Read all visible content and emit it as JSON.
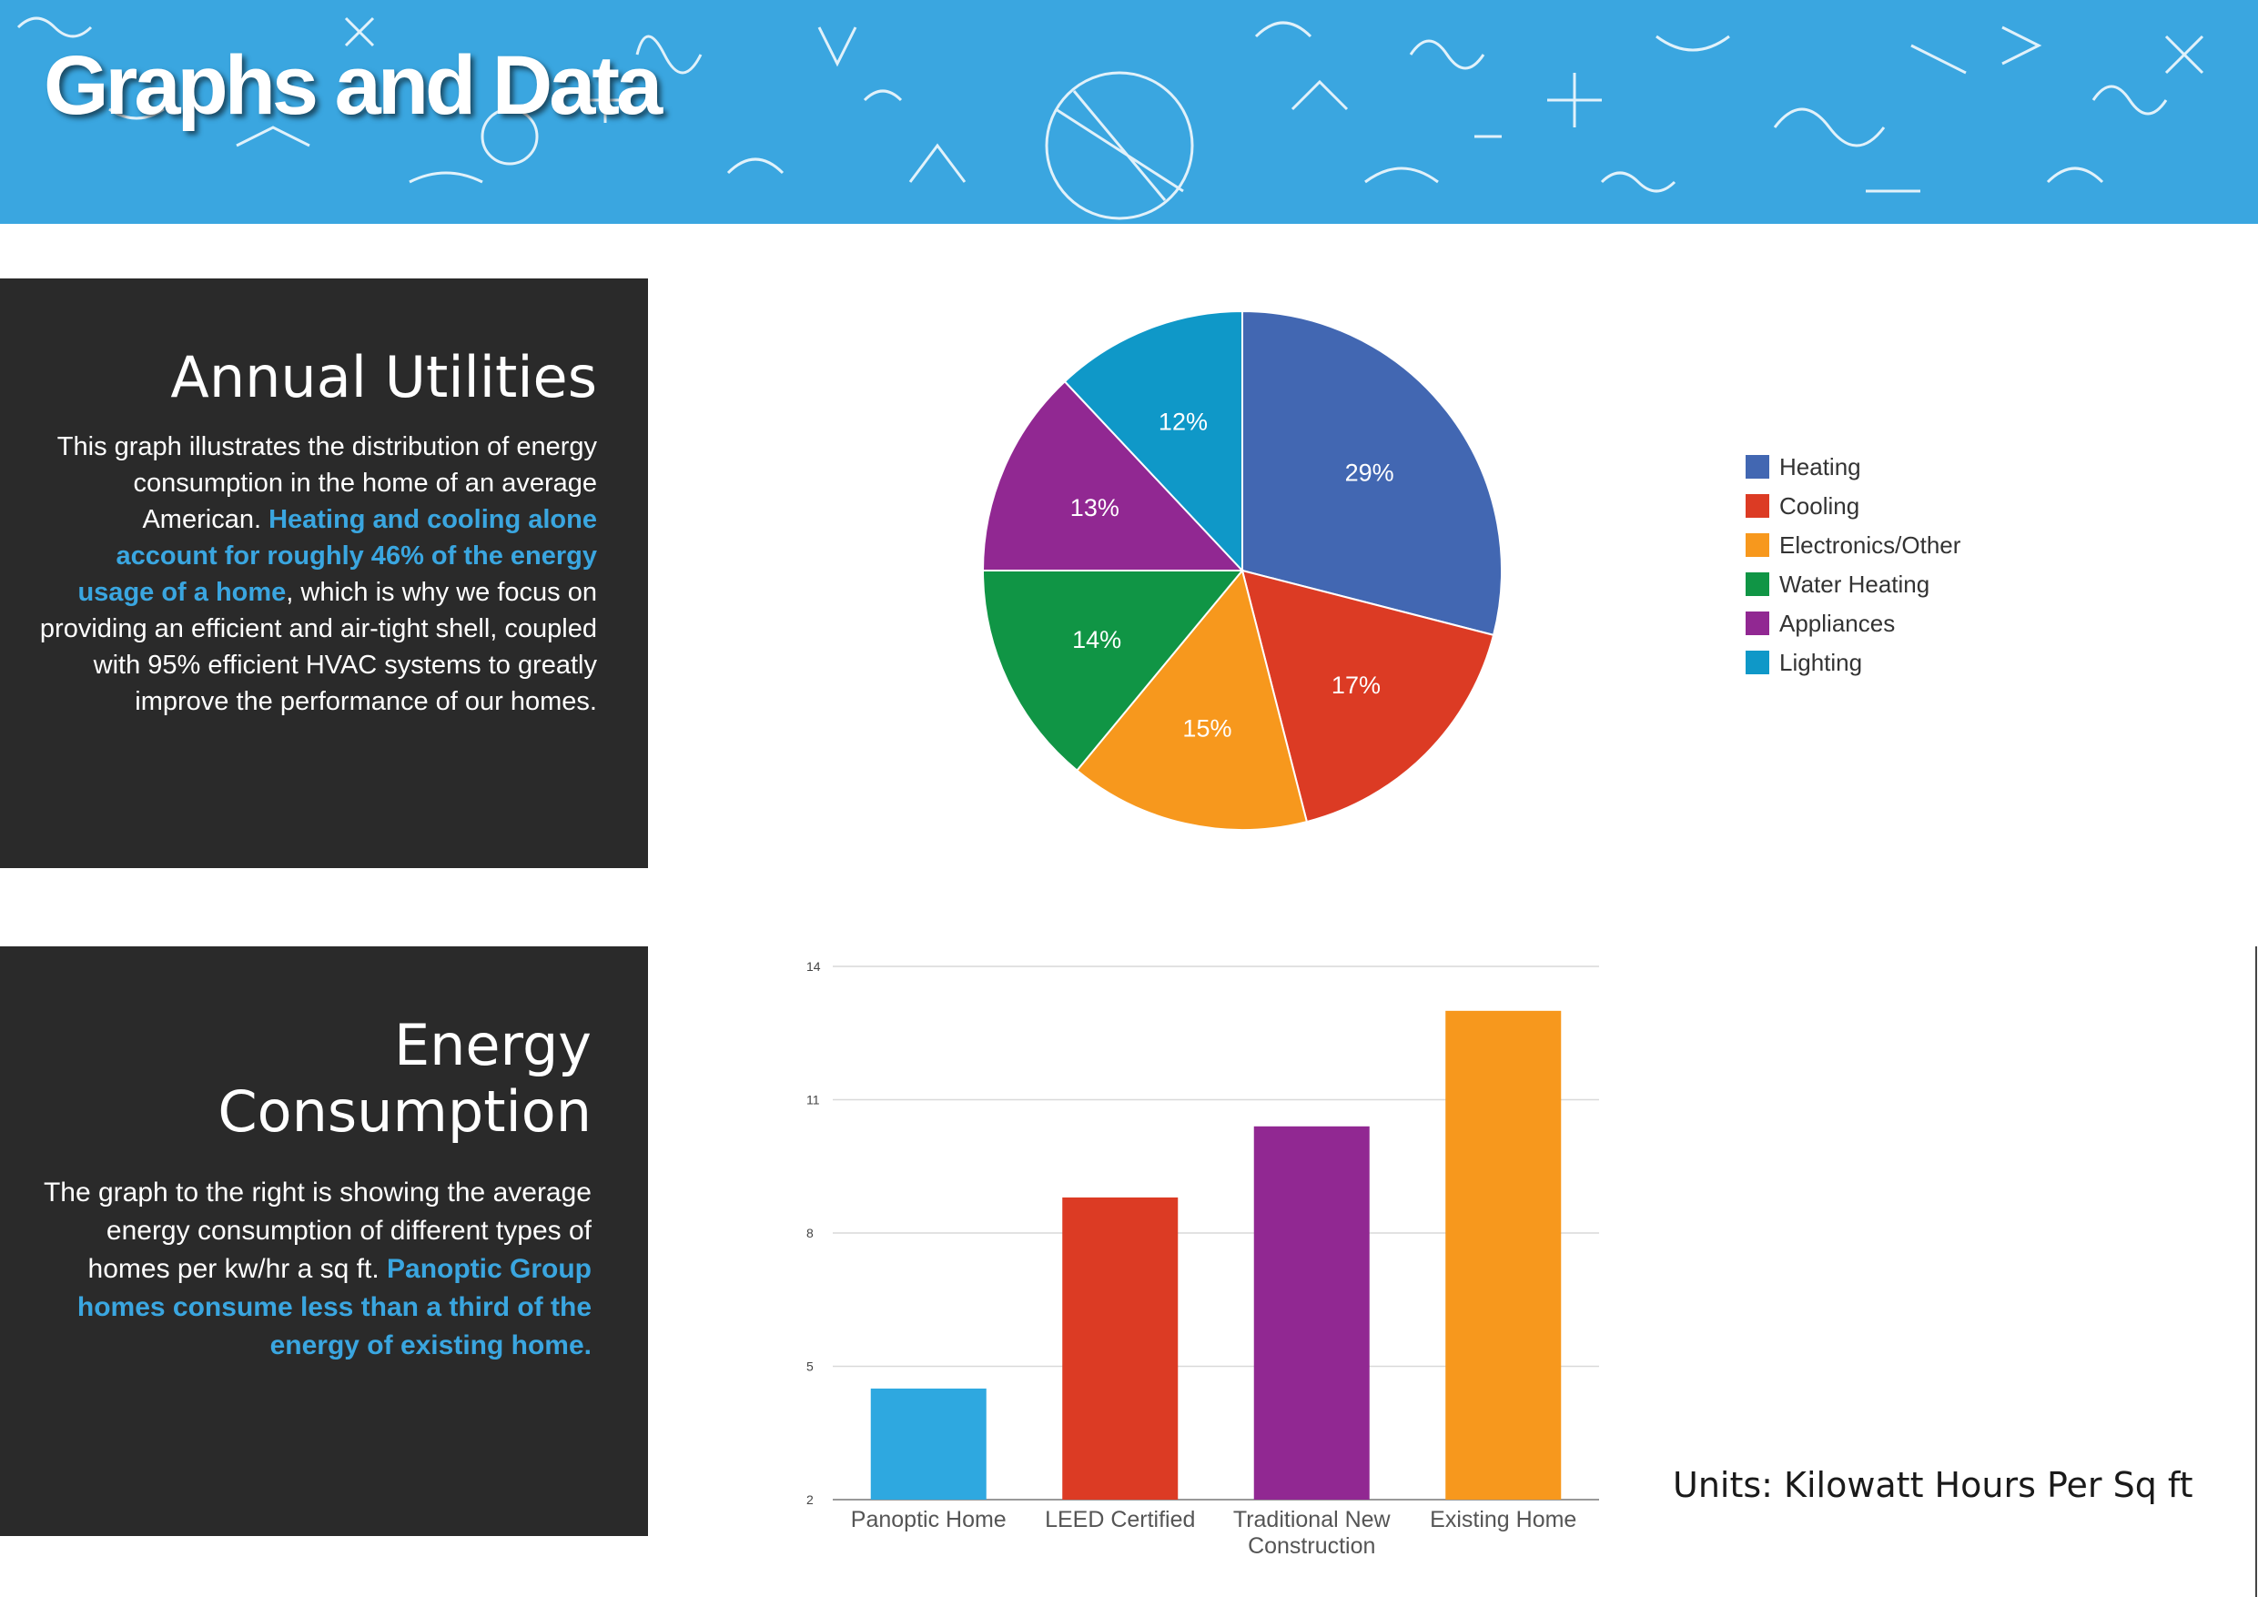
{
  "header": {
    "title": "Graphs and Data"
  },
  "annual_utilities": {
    "heading": "Annual Utilities",
    "text_1": "This graph illustrates the distribution of energy consumption in the home of an average American. ",
    "highlight": "Heating and cooling alone account for roughly 46% of the energy usage of a home",
    "text_2": ", which is why we focus on providing an efficient and air-tight shell, coupled with 95% efficient HVAC systems to greatly improve the performance of our homes."
  },
  "energy_consumption": {
    "heading": "Energy Consumption",
    "text_1": "The graph to the right is showing the average energy consumption of different types of homes per kw/hr a sq ft. ",
    "highlight": "Panoptic Group homes consume less than a third of the energy of existing home."
  },
  "units_label": "Units: Kilowatt Hours Per Sq ft",
  "colors": {
    "accent": "#3aa6e0",
    "panel": "#2a2a2a",
    "heating": "#4267b2",
    "cooling": "#dc3b24",
    "electronics": "#f7981d",
    "water_heating": "#109545",
    "appliances": "#912892",
    "lighting": "#0f98c8"
  },
  "chart_data": [
    {
      "type": "pie",
      "title": "Annual Utilities",
      "categories": [
        "Heating",
        "Cooling",
        "Electronics/Other",
        "Water Heating",
        "Appliances",
        "Lighting"
      ],
      "values": [
        29,
        17,
        15,
        14,
        13,
        12
      ],
      "labels": [
        "29%",
        "17%",
        "15%",
        "14%",
        "13%",
        "12%"
      ],
      "colors": [
        "#4267b2",
        "#dc3b24",
        "#f7981d",
        "#109545",
        "#912892",
        "#0f98c8"
      ],
      "legend": "right"
    },
    {
      "type": "bar",
      "title": "Energy Consumption",
      "categories": [
        "Panoptic Home",
        "LEED Certified",
        "Traditional New Construction",
        "Existing Home"
      ],
      "category_lines": [
        [
          "Panoptic Home"
        ],
        [
          "LEED Certified"
        ],
        [
          "Traditional New",
          "Construction"
        ],
        [
          "Existing Home"
        ]
      ],
      "values": [
        4.5,
        8.8,
        10.4,
        13
      ],
      "colors": [
        "#2ea8e0",
        "#dc3b24",
        "#912892",
        "#f7981d"
      ],
      "ylim": [
        2,
        14
      ],
      "yticks": [
        2,
        5,
        8,
        11,
        14
      ],
      "xlabel": "",
      "ylabel": "",
      "grid": true
    }
  ]
}
